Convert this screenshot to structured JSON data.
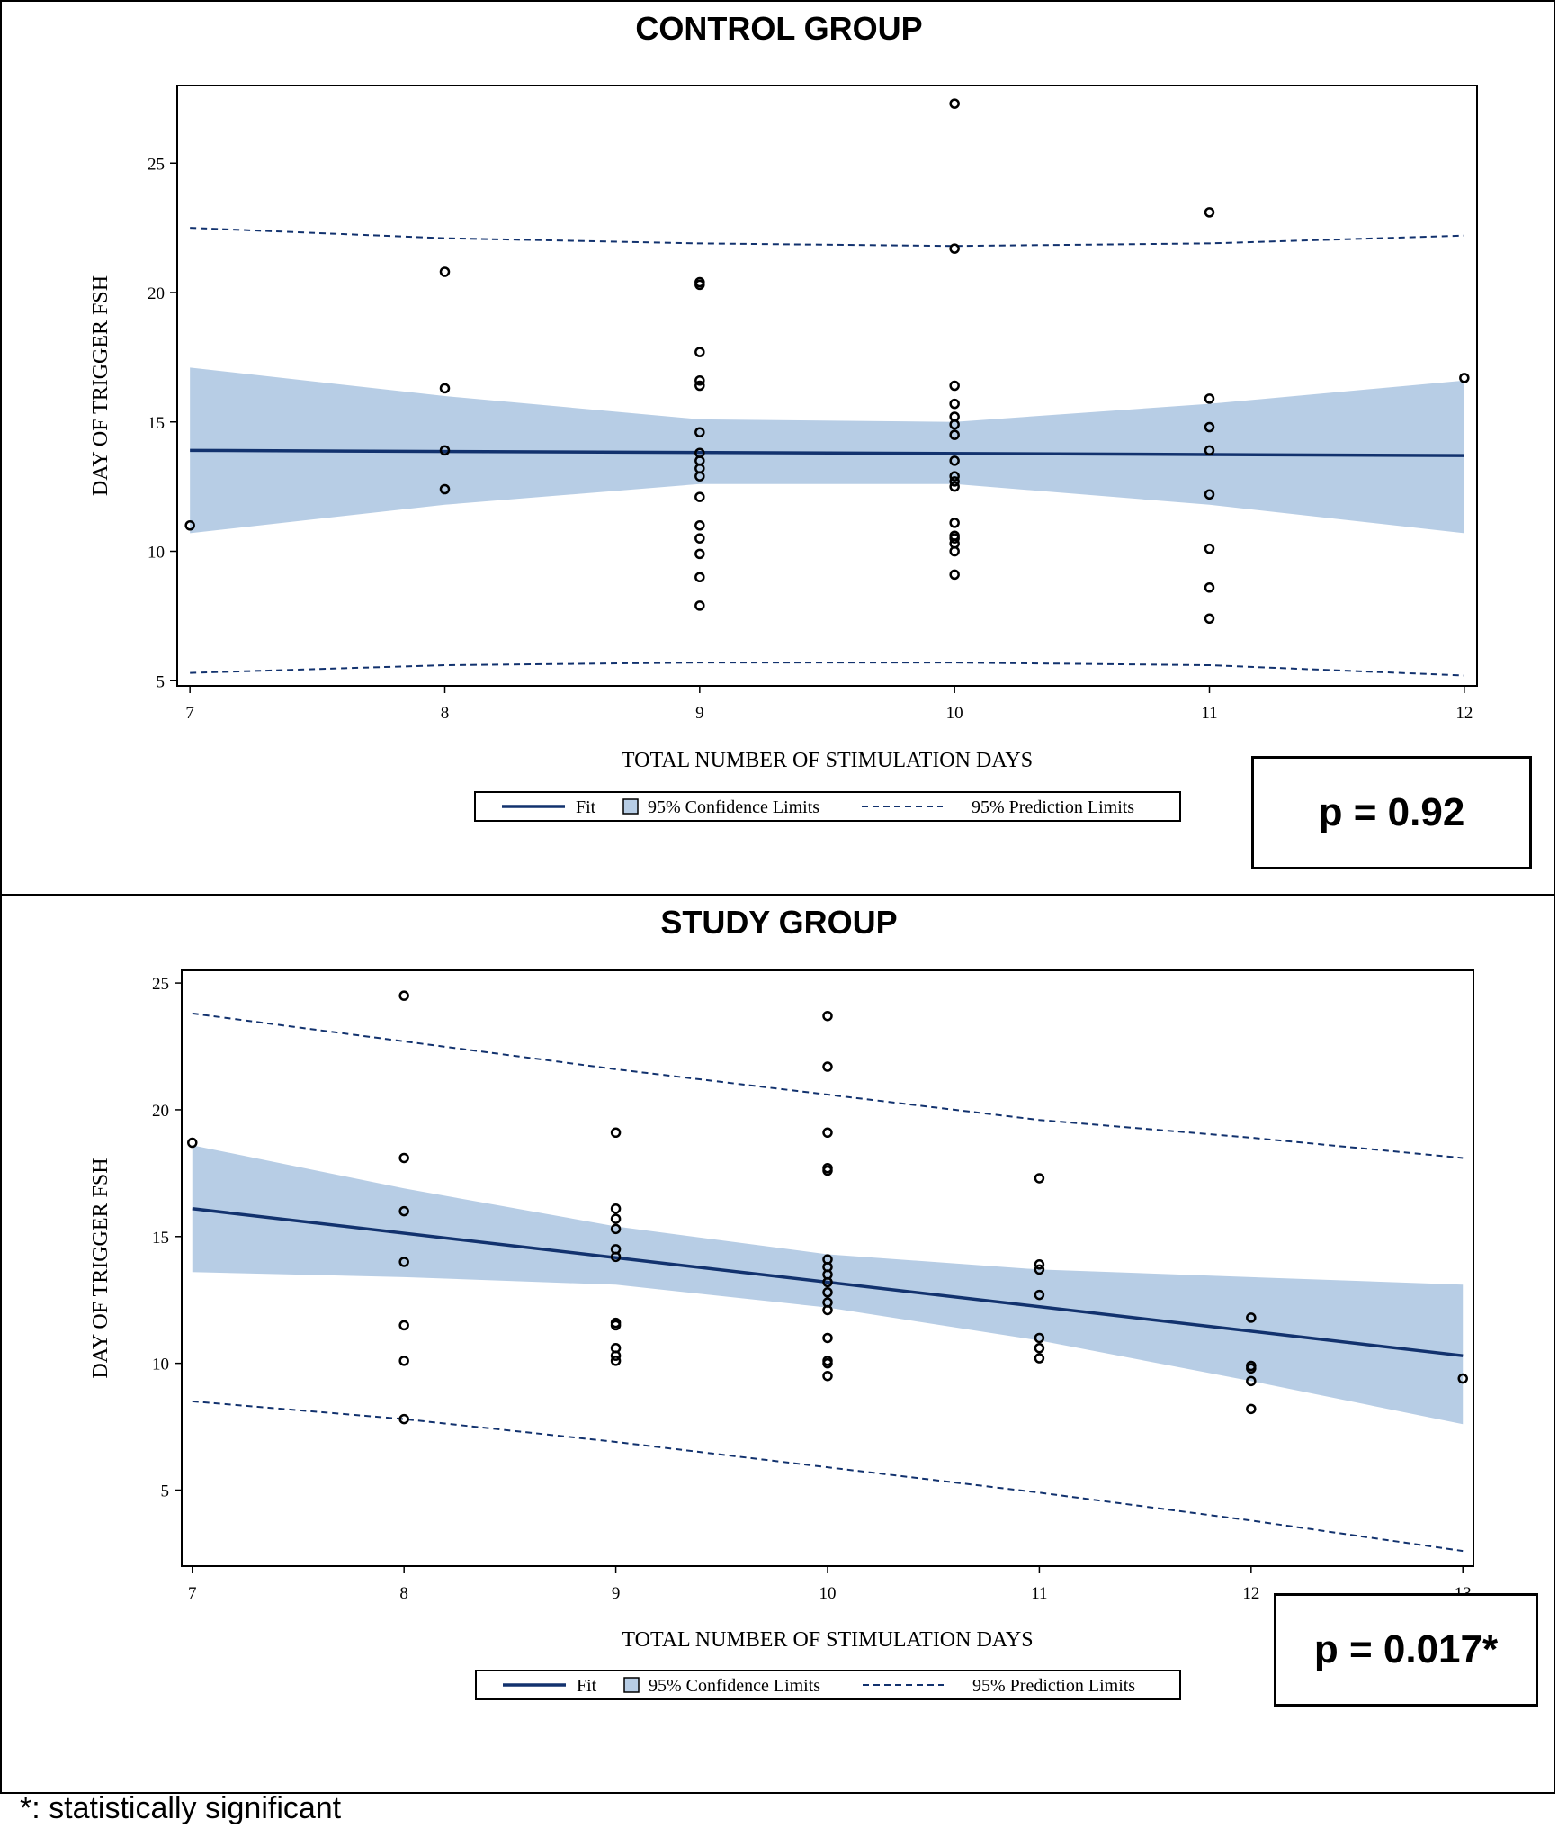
{
  "footnote": "*: statistically significant",
  "colors": {
    "fit": "#12326e",
    "band": "#b7cde5",
    "prediction": "#12326e",
    "points": "#000000"
  },
  "legend": {
    "fit": "Fit",
    "confidence": "95% Confidence Limits",
    "prediction": "95% Prediction Limits"
  },
  "chart_data": [
    {
      "type": "scatter",
      "title": "CONTROL GROUP",
      "xlabel": "TOTAL NUMBER OF STIMULATION DAYS",
      "ylabel": "DAY OF TRIGGER FSH",
      "xlim": [
        6.95,
        12.05
      ],
      "ylim": [
        4.8,
        28.0
      ],
      "xticks": [
        7,
        8,
        9,
        10,
        11,
        12
      ],
      "yticks": [
        5,
        10,
        15,
        20,
        25
      ],
      "p_value": "p = 0.92",
      "points": [
        [
          7,
          11.0
        ],
        [
          8,
          20.8
        ],
        [
          8,
          16.3
        ],
        [
          8,
          13.9
        ],
        [
          8,
          12.4
        ],
        [
          9,
          20.4
        ],
        [
          9,
          20.3
        ],
        [
          9,
          17.7
        ],
        [
          9,
          16.6
        ],
        [
          9,
          16.4
        ],
        [
          9,
          14.6
        ],
        [
          9,
          13.8
        ],
        [
          9,
          13.5
        ],
        [
          9,
          13.2
        ],
        [
          9,
          12.9
        ],
        [
          9,
          12.1
        ],
        [
          9,
          11.0
        ],
        [
          9,
          10.5
        ],
        [
          9,
          9.9
        ],
        [
          9,
          9.0
        ],
        [
          9,
          7.9
        ],
        [
          10,
          27.3
        ],
        [
          10,
          21.7
        ],
        [
          10,
          16.4
        ],
        [
          10,
          15.7
        ],
        [
          10,
          15.2
        ],
        [
          10,
          14.9
        ],
        [
          10,
          14.5
        ],
        [
          10,
          13.5
        ],
        [
          10,
          12.9
        ],
        [
          10,
          12.7
        ],
        [
          10,
          12.5
        ],
        [
          10,
          11.1
        ],
        [
          10,
          10.6
        ],
        [
          10,
          10.5
        ],
        [
          10,
          10.3
        ],
        [
          10,
          10.0
        ],
        [
          10,
          9.1
        ],
        [
          11,
          23.1
        ],
        [
          11,
          15.9
        ],
        [
          11,
          14.8
        ],
        [
          11,
          13.9
        ],
        [
          11,
          12.2
        ],
        [
          11,
          10.1
        ],
        [
          11,
          8.6
        ],
        [
          11,
          7.4
        ],
        [
          12,
          16.7
        ]
      ],
      "fit": {
        "x": [
          7,
          12
        ],
        "y": [
          13.9,
          13.7
        ]
      },
      "confidence": {
        "x": [
          7,
          8,
          9,
          10,
          11,
          12
        ],
        "upper": [
          17.1,
          16.0,
          15.1,
          15.0,
          15.7,
          16.6
        ],
        "lower": [
          10.7,
          11.8,
          12.6,
          12.6,
          11.8,
          10.7
        ]
      },
      "prediction": {
        "x": [
          7,
          8,
          9,
          10,
          11,
          12
        ],
        "upper": [
          22.5,
          22.1,
          21.9,
          21.8,
          21.9,
          22.2
        ],
        "lower": [
          5.3,
          5.6,
          5.7,
          5.7,
          5.6,
          5.2
        ]
      }
    },
    {
      "type": "scatter",
      "title": "STUDY GROUP",
      "xlabel": "TOTAL NUMBER OF STIMULATION DAYS",
      "ylabel": "DAY OF TRIGGER FSH",
      "xlim": [
        6.95,
        13.05
      ],
      "ylim": [
        2.0,
        25.5
      ],
      "xticks": [
        7,
        8,
        9,
        10,
        11,
        12,
        13
      ],
      "yticks": [
        5,
        10,
        15,
        20,
        25
      ],
      "p_value": "p = 0.017*",
      "points": [
        [
          7,
          18.7
        ],
        [
          8,
          24.5
        ],
        [
          8,
          18.1
        ],
        [
          8,
          16.0
        ],
        [
          8,
          14.0
        ],
        [
          8,
          11.5
        ],
        [
          8,
          10.1
        ],
        [
          8,
          7.8
        ],
        [
          9,
          19.1
        ],
        [
          9,
          16.1
        ],
        [
          9,
          15.7
        ],
        [
          9,
          15.3
        ],
        [
          9,
          14.5
        ],
        [
          9,
          14.2
        ],
        [
          9,
          11.6
        ],
        [
          9,
          11.5
        ],
        [
          9,
          10.6
        ],
        [
          9,
          10.3
        ],
        [
          9,
          10.1
        ],
        [
          10,
          23.7
        ],
        [
          10,
          21.7
        ],
        [
          10,
          19.1
        ],
        [
          10,
          17.7
        ],
        [
          10,
          17.6
        ],
        [
          10,
          14.1
        ],
        [
          10,
          13.8
        ],
        [
          10,
          13.5
        ],
        [
          10,
          13.2
        ],
        [
          10,
          12.8
        ],
        [
          10,
          12.4
        ],
        [
          10,
          12.1
        ],
        [
          10,
          11.0
        ],
        [
          10,
          10.1
        ],
        [
          10,
          10.0
        ],
        [
          10,
          9.5
        ],
        [
          11,
          17.3
        ],
        [
          11,
          13.9
        ],
        [
          11,
          13.7
        ],
        [
          11,
          12.7
        ],
        [
          11,
          11.0
        ],
        [
          11,
          10.6
        ],
        [
          11,
          10.2
        ],
        [
          12,
          11.8
        ],
        [
          12,
          9.9
        ],
        [
          12,
          9.8
        ],
        [
          12,
          9.3
        ],
        [
          12,
          8.2
        ],
        [
          13,
          9.4
        ]
      ],
      "fit": {
        "x": [
          7,
          13
        ],
        "y": [
          16.1,
          10.3
        ]
      },
      "confidence": {
        "x": [
          7,
          8,
          9,
          10,
          11,
          12,
          13
        ],
        "upper": [
          18.6,
          16.9,
          15.4,
          14.3,
          13.7,
          13.4,
          13.1
        ],
        "lower": [
          13.6,
          13.4,
          13.1,
          12.2,
          10.9,
          9.3,
          7.6
        ]
      },
      "prediction": {
        "x": [
          7,
          8,
          9,
          10,
          11,
          12,
          13
        ],
        "upper": [
          23.8,
          22.7,
          21.6,
          20.6,
          19.6,
          18.9,
          18.1
        ],
        "lower": [
          8.5,
          7.8,
          6.9,
          5.9,
          4.9,
          3.8,
          2.6
        ]
      }
    }
  ]
}
